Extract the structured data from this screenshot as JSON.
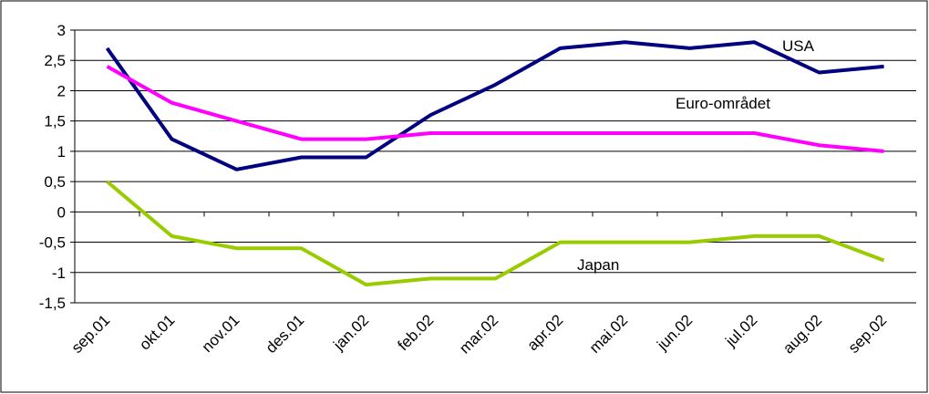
{
  "chart_data": {
    "type": "line",
    "categories": [
      "sep.01",
      "okt.01",
      "nov.01",
      "des.01",
      "jan.02",
      "feb.02",
      "mar.02",
      "apr.02",
      "mai.02",
      "jun.02",
      "jul.02",
      "aug.02",
      "sep.02"
    ],
    "ylim": [
      -1.5,
      3
    ],
    "yticks": [
      -1.5,
      -1,
      -0.5,
      0,
      0.5,
      1,
      1.5,
      2,
      2.5,
      3
    ],
    "ytick_labels": [
      "-1,5",
      "-1",
      "-0,5",
      "0",
      "0,5",
      "1",
      "1,5",
      "2",
      "2,5",
      "3"
    ],
    "grid": true,
    "series": [
      {
        "name": "USA",
        "color": "#000080",
        "values": [
          2.7,
          1.2,
          0.7,
          0.9,
          0.9,
          1.6,
          2.1,
          2.7,
          2.8,
          2.7,
          2.8,
          2.3,
          2.4
        ]
      },
      {
        "name": "Euro-området",
        "color": "#ff00ff",
        "values": [
          2.4,
          1.8,
          1.5,
          1.2,
          1.2,
          1.3,
          1.3,
          1.3,
          1.3,
          1.3,
          1.3,
          1.1,
          1.0
        ]
      },
      {
        "name": "Japan",
        "color": "#99cc00",
        "values": [
          0.5,
          -0.4,
          -0.6,
          -0.6,
          -1.2,
          -1.1,
          -1.1,
          -0.5,
          -0.5,
          -0.5,
          -0.4,
          -0.4,
          -0.8
        ]
      }
    ]
  }
}
